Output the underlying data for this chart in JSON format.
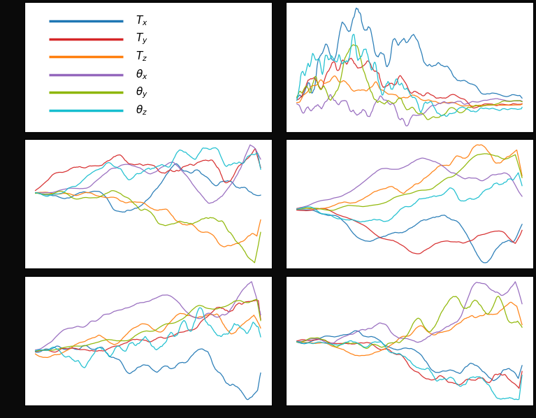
{
  "colors": [
    "#1f77b4",
    "#d62728",
    "#ff7f0e",
    "#9467bd",
    "#8db600",
    "#17becf"
  ],
  "legend_labels": [
    "$T_x$",
    "$T_y$",
    "$T_z$",
    "$\\theta_x$",
    "$\\theta_y$",
    "$\\theta_z$"
  ],
  "n_points": 300,
  "grid_color": "#aaaaaa",
  "figure_bg": "#0a0a0a",
  "axes_bg": "#ffffff",
  "figsize": [
    7.67,
    5.98
  ],
  "dpi": 100
}
